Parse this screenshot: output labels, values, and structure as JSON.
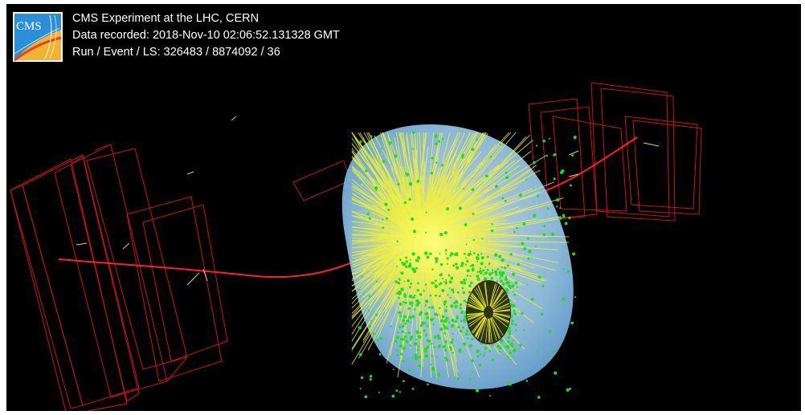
{
  "header": {
    "experiment": "CMS Experiment at the LHC, CERN",
    "recorded": "Data recorded: 2018-Nov-10 02:06:52.131328 GMT",
    "run_event": "Run / Event / LS: 326483 / 8874092 / 36"
  },
  "logo": {
    "text": "CMS"
  },
  "colors": {
    "background": "#000000",
    "muon_chamber": "#c81414",
    "muon_track": "#ff2020",
    "detector_envelope": "#8fc7ee",
    "tracks": "#f5f52a",
    "hits": "#22dd22"
  }
}
